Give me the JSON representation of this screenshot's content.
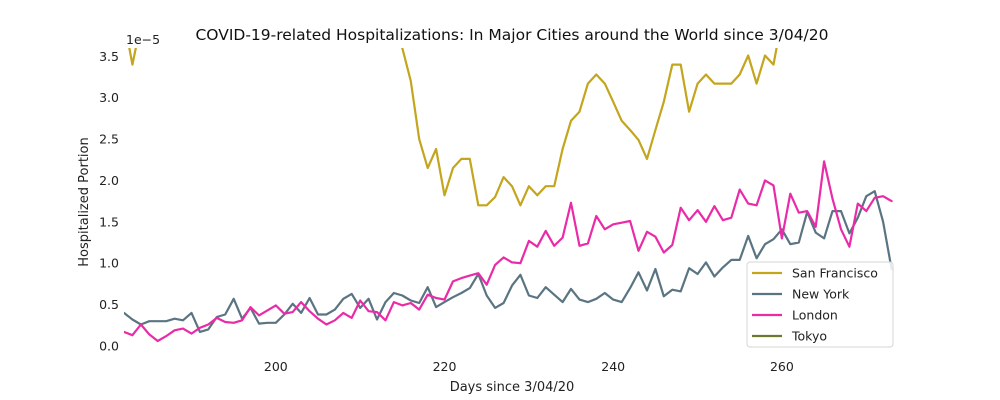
{
  "chart_data": {
    "type": "line",
    "title": "COVID-19-related Hospitalizations: In Major Cities around the World since 3/04/20",
    "xlabel": "Days since 3/04/20",
    "ylabel": "Hospitalized Portion",
    "offset_text": "1e−5",
    "xlim": [
      182,
      274
    ],
    "ylim": [
      0,
      3.6
    ],
    "x_ticks": [
      200,
      220,
      240,
      260
    ],
    "x_tick_labels": [
      "200",
      "220",
      "240",
      "260"
    ],
    "y_ticks": [
      0,
      0.5,
      1.0,
      1.5,
      2.0,
      2.5,
      3.0,
      3.5
    ],
    "y_tick_labels": [
      "0.0",
      "0.5",
      "1.0",
      "1.5",
      "2.0",
      "2.5",
      "3.0",
      "3.5"
    ],
    "legend_position": "lower-right",
    "series": [
      {
        "name": "San Francisco",
        "color": "#c4a51e",
        "points": [
          [
            182,
            3.95
          ],
          [
            183,
            3.4
          ],
          [
            184,
            3.9
          ],
          [
            214,
            3.9
          ],
          [
            215,
            3.6
          ],
          [
            216,
            3.2
          ],
          [
            217,
            2.5
          ],
          [
            218,
            2.15
          ],
          [
            219,
            2.38
          ],
          [
            220,
            1.82
          ],
          [
            221,
            2.15
          ],
          [
            222,
            2.26
          ],
          [
            223,
            2.26
          ],
          [
            224,
            1.7
          ],
          [
            225,
            1.7
          ],
          [
            226,
            1.8
          ],
          [
            227,
            2.04
          ],
          [
            228,
            1.93
          ],
          [
            229,
            1.7
          ],
          [
            230,
            1.93
          ],
          [
            231,
            1.82
          ],
          [
            232,
            1.93
          ],
          [
            233,
            1.93
          ],
          [
            234,
            2.38
          ],
          [
            235,
            2.72
          ],
          [
            236,
            2.83
          ],
          [
            237,
            3.17
          ],
          [
            238,
            3.28
          ],
          [
            239,
            3.17
          ],
          [
            240,
            2.95
          ],
          [
            241,
            2.72
          ],
          [
            242,
            2.61
          ],
          [
            243,
            2.49
          ],
          [
            244,
            2.26
          ],
          [
            245,
            2.61
          ],
          [
            246,
            2.95
          ],
          [
            247,
            3.4
          ],
          [
            248,
            3.4
          ],
          [
            249,
            2.83
          ],
          [
            250,
            3.17
          ],
          [
            251,
            3.28
          ],
          [
            252,
            3.17
          ],
          [
            253,
            3.17
          ],
          [
            254,
            3.17
          ],
          [
            255,
            3.28
          ],
          [
            256,
            3.51
          ],
          [
            257,
            3.17
          ],
          [
            258,
            3.51
          ],
          [
            259,
            3.4
          ],
          [
            260,
            3.95
          ]
        ]
      },
      {
        "name": "New York",
        "color": "#5a7482",
        "points": [
          [
            182,
            0.4
          ],
          [
            183,
            0.32
          ],
          [
            184,
            0.26
          ],
          [
            185,
            0.3
          ],
          [
            186,
            0.3
          ],
          [
            187,
            0.3
          ],
          [
            188,
            0.33
          ],
          [
            189,
            0.31
          ],
          [
            190,
            0.4
          ],
          [
            191,
            0.17
          ],
          [
            192,
            0.2
          ],
          [
            193,
            0.35
          ],
          [
            194,
            0.38
          ],
          [
            195,
            0.57
          ],
          [
            196,
            0.33
          ],
          [
            197,
            0.46
          ],
          [
            198,
            0.27
          ],
          [
            199,
            0.28
          ],
          [
            200,
            0.28
          ],
          [
            201,
            0.38
          ],
          [
            202,
            0.51
          ],
          [
            203,
            0.4
          ],
          [
            204,
            0.58
          ],
          [
            205,
            0.38
          ],
          [
            206,
            0.38
          ],
          [
            207,
            0.44
          ],
          [
            208,
            0.57
          ],
          [
            209,
            0.63
          ],
          [
            210,
            0.46
          ],
          [
            211,
            0.57
          ],
          [
            212,
            0.32
          ],
          [
            213,
            0.53
          ],
          [
            214,
            0.64
          ],
          [
            215,
            0.61
          ],
          [
            216,
            0.55
          ],
          [
            217,
            0.52
          ],
          [
            218,
            0.71
          ],
          [
            219,
            0.47
          ],
          [
            220,
            0.53
          ],
          [
            221,
            0.59
          ],
          [
            222,
            0.64
          ],
          [
            223,
            0.7
          ],
          [
            224,
            0.87
          ],
          [
            225,
            0.61
          ],
          [
            226,
            0.46
          ],
          [
            227,
            0.52
          ],
          [
            228,
            0.73
          ],
          [
            229,
            0.86
          ],
          [
            230,
            0.61
          ],
          [
            231,
            0.58
          ],
          [
            232,
            0.71
          ],
          [
            233,
            0.62
          ],
          [
            234,
            0.53
          ],
          [
            235,
            0.69
          ],
          [
            236,
            0.56
          ],
          [
            237,
            0.53
          ],
          [
            238,
            0.57
          ],
          [
            239,
            0.64
          ],
          [
            240,
            0.56
          ],
          [
            241,
            0.53
          ],
          [
            242,
            0.7
          ],
          [
            243,
            0.89
          ],
          [
            244,
            0.67
          ],
          [
            245,
            0.93
          ],
          [
            246,
            0.6
          ],
          [
            247,
            0.68
          ],
          [
            248,
            0.66
          ],
          [
            249,
            0.94
          ],
          [
            250,
            0.87
          ],
          [
            251,
            1.01
          ],
          [
            252,
            0.84
          ],
          [
            253,
            0.95
          ],
          [
            254,
            1.04
          ],
          [
            255,
            1.04
          ],
          [
            256,
            1.33
          ],
          [
            257,
            1.06
          ],
          [
            258,
            1.23
          ],
          [
            259,
            1.29
          ],
          [
            260,
            1.41
          ],
          [
            261,
            1.23
          ],
          [
            262,
            1.25
          ],
          [
            263,
            1.62
          ],
          [
            264,
            1.37
          ],
          [
            265,
            1.3
          ],
          [
            266,
            1.63
          ],
          [
            267,
            1.63
          ],
          [
            268,
            1.36
          ],
          [
            269,
            1.55
          ],
          [
            270,
            1.81
          ],
          [
            271,
            1.87
          ],
          [
            272,
            1.5
          ],
          [
            273,
            0.93
          ]
        ]
      },
      {
        "name": "London",
        "color": "#ea2ba8",
        "points": [
          [
            182,
            0.17
          ],
          [
            183,
            0.13
          ],
          [
            184,
            0.26
          ],
          [
            185,
            0.14
          ],
          [
            186,
            0.06
          ],
          [
            187,
            0.12
          ],
          [
            188,
            0.19
          ],
          [
            189,
            0.21
          ],
          [
            190,
            0.15
          ],
          [
            191,
            0.22
          ],
          [
            192,
            0.26
          ],
          [
            193,
            0.34
          ],
          [
            194,
            0.29
          ],
          [
            195,
            0.28
          ],
          [
            196,
            0.31
          ],
          [
            197,
            0.47
          ],
          [
            198,
            0.37
          ],
          [
            199,
            0.43
          ],
          [
            200,
            0.49
          ],
          [
            201,
            0.39
          ],
          [
            202,
            0.41
          ],
          [
            203,
            0.53
          ],
          [
            204,
            0.42
          ],
          [
            205,
            0.33
          ],
          [
            206,
            0.26
          ],
          [
            207,
            0.31
          ],
          [
            208,
            0.4
          ],
          [
            209,
            0.34
          ],
          [
            210,
            0.55
          ],
          [
            211,
            0.42
          ],
          [
            212,
            0.41
          ],
          [
            213,
            0.31
          ],
          [
            214,
            0.53
          ],
          [
            215,
            0.49
          ],
          [
            216,
            0.52
          ],
          [
            217,
            0.44
          ],
          [
            218,
            0.62
          ],
          [
            219,
            0.58
          ],
          [
            220,
            0.56
          ],
          [
            221,
            0.78
          ],
          [
            222,
            0.82
          ],
          [
            223,
            0.85
          ],
          [
            224,
            0.88
          ],
          [
            225,
            0.74
          ],
          [
            226,
            0.98
          ],
          [
            227,
            1.07
          ],
          [
            228,
            1.01
          ],
          [
            229,
            1.0
          ],
          [
            230,
            1.27
          ],
          [
            231,
            1.2
          ],
          [
            232,
            1.39
          ],
          [
            233,
            1.21
          ],
          [
            234,
            1.31
          ],
          [
            235,
            1.73
          ],
          [
            236,
            1.21
          ],
          [
            237,
            1.24
          ],
          [
            238,
            1.57
          ],
          [
            239,
            1.41
          ],
          [
            240,
            1.47
          ],
          [
            241,
            1.49
          ],
          [
            242,
            1.51
          ],
          [
            243,
            1.15
          ],
          [
            244,
            1.38
          ],
          [
            245,
            1.32
          ],
          [
            246,
            1.13
          ],
          [
            247,
            1.22
          ],
          [
            248,
            1.67
          ],
          [
            249,
            1.52
          ],
          [
            250,
            1.64
          ],
          [
            251,
            1.5
          ],
          [
            252,
            1.69
          ],
          [
            253,
            1.52
          ],
          [
            254,
            1.55
          ],
          [
            255,
            1.89
          ],
          [
            256,
            1.72
          ],
          [
            257,
            1.7
          ],
          [
            258,
            2.0
          ],
          [
            259,
            1.94
          ],
          [
            260,
            1.3
          ],
          [
            261,
            1.84
          ],
          [
            262,
            1.61
          ],
          [
            263,
            1.63
          ],
          [
            264,
            1.44
          ],
          [
            265,
            2.23
          ],
          [
            266,
            1.78
          ],
          [
            267,
            1.41
          ],
          [
            268,
            1.2
          ],
          [
            269,
            1.72
          ],
          [
            270,
            1.63
          ],
          [
            271,
            1.79
          ],
          [
            272,
            1.81
          ],
          [
            273,
            1.75
          ]
        ]
      },
      {
        "name": "Tokyo",
        "color": "#6b7a2f",
        "points": []
      }
    ]
  }
}
